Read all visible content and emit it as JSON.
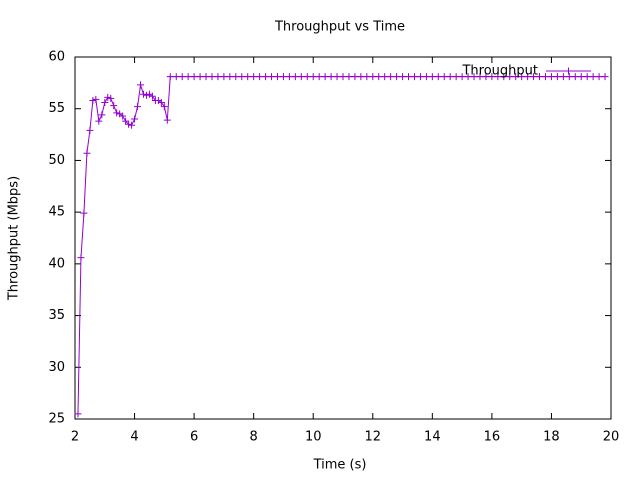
{
  "chart_data": {
    "type": "line",
    "title": "Throughput vs Time",
    "x_label": "Time (s)",
    "y_label": "Throughput (Mbps)",
    "x": [
      2.1,
      2.2,
      2.3,
      2.4,
      2.5,
      2.6,
      2.7,
      2.8,
      2.9,
      3.0,
      3.1,
      3.2,
      3.3,
      3.4,
      3.5,
      3.6,
      3.7,
      3.8,
      3.9,
      4.0,
      4.1,
      4.2,
      4.3,
      4.4,
      4.5,
      4.6,
      4.7,
      4.8,
      4.9,
      5.0,
      5.1,
      5.2,
      5.4,
      5.6,
      5.8,
      6,
      6.2,
      6.4,
      6.6,
      6.8,
      7,
      7.2,
      7.4,
      7.6,
      7.8,
      8,
      8.2,
      8.4,
      8.6,
      8.8,
      9,
      9.2,
      9.4,
      9.6,
      9.8,
      10,
      10.2,
      10.4,
      10.6,
      10.8,
      11,
      11.2,
      11.4,
      11.6,
      11.8,
      12,
      12.2,
      12.4,
      12.6,
      12.8,
      13,
      13.2,
      13.4,
      13.6,
      13.8,
      14,
      14.2,
      14.4,
      14.6,
      14.8,
      15,
      15.2,
      15.4,
      15.6,
      15.8,
      16,
      16.2,
      16.4,
      16.6,
      16.8,
      17,
      17.2,
      17.4,
      17.6,
      17.8,
      18,
      18.2,
      18.4,
      18.6,
      18.8,
      19,
      19.2,
      19.4,
      19.6,
      19.8
    ],
    "series": [
      {
        "name": "Throughput",
        "color": "#9400d3",
        "values": [
          25.5,
          40.6,
          44.9,
          50.7,
          52.9,
          55.8,
          55.9,
          53.8,
          54.4,
          55.6,
          56.1,
          56.0,
          55.3,
          54.6,
          54.5,
          54.3,
          53.8,
          53.5,
          53.4,
          54.0,
          55.2,
          57.3,
          56.4,
          56.3,
          56.4,
          56.2,
          55.8,
          55.8,
          55.6,
          55.2,
          53.9,
          58.1,
          58.1,
          58.1,
          58.1,
          58.1,
          58.1,
          58.1,
          58.1,
          58.1,
          58.1,
          58.1,
          58.1,
          58.1,
          58.1,
          58.1,
          58.1,
          58.1,
          58.1,
          58.1,
          58.1,
          58.1,
          58.1,
          58.1,
          58.1,
          58.1,
          58.1,
          58.1,
          58.1,
          58.1,
          58.1,
          58.1,
          58.1,
          58.1,
          58.1,
          58.1,
          58.1,
          58.1,
          58.1,
          58.1,
          58.1,
          58.1,
          58.1,
          58.1,
          58.1,
          58.1,
          58.1,
          58.1,
          58.1,
          58.1,
          58.1,
          58.1,
          58.1,
          58.1,
          58.1,
          58.1,
          58.1,
          58.1,
          58.1,
          58.1,
          58.1,
          58.1,
          58.1,
          58.1,
          58.1,
          58.1,
          58.1,
          58.1,
          58.1,
          58.1,
          58.1,
          58.1,
          58.1,
          58.1,
          58.1
        ]
      }
    ],
    "xlim": [
      2,
      20
    ],
    "xticks": [
      2,
      4,
      6,
      8,
      10,
      12,
      14,
      16,
      18,
      20
    ],
    "ylim": [
      25,
      60
    ],
    "yticks": [
      25,
      30,
      35,
      40,
      45,
      50,
      55,
      60
    ],
    "legend": "top right",
    "grid": false
  }
}
